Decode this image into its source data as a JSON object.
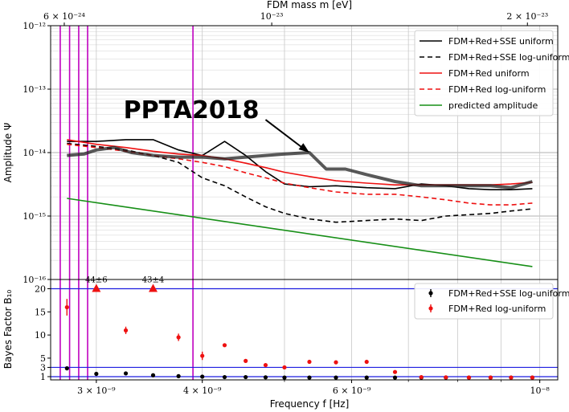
{
  "chart_data": [
    {
      "type": "line",
      "ylabel": "Amplitude Ψ",
      "top_xlabel": "FDM mass m [eV]",
      "yscale": "log",
      "xscale": "log",
      "xlim": [
        2.65e-09,
        1.05e-08
      ],
      "ylim": [
        1e-16,
        1e-12
      ],
      "grid": true,
      "legend_position": "top-right",
      "y_ticks": [
        {
          "v": 1e-16,
          "label": "10⁻¹⁶"
        },
        {
          "v": 1e-15,
          "label": "10⁻¹⁵"
        },
        {
          "v": 1e-14,
          "label": "10⁻¹⁴"
        },
        {
          "v": 1e-13,
          "label": "10⁻¹³"
        },
        {
          "v": 1e-12,
          "label": "10⁻¹²"
        }
      ],
      "top_ticks": [
        {
          "v": 2.75e-09,
          "label": "6 × 10⁻²⁴"
        },
        {
          "v": 4.83e-09,
          "label": "10⁻²³"
        },
        {
          "v": 9.67e-09,
          "label": "2 × 10⁻²³"
        }
      ],
      "vlines_x": [
        2.72e-09,
        2.79e-09,
        2.86e-09,
        2.93e-09,
        3.9e-09
      ],
      "vline_color": "#bf00bf",
      "annotation": {
        "text": "PPTA2018",
        "arrow_from": [
          4.75e-09,
          3.3e-14
        ],
        "arrow_to": [
          5.35e-09,
          1e-14
        ]
      },
      "series": [
        {
          "name": "FDM+Red+SSE uniform",
          "color": "#000000",
          "dash": "solid",
          "width": 1.6,
          "x": [
            2.77e-09,
            3e-09,
            3.25e-09,
            3.5e-09,
            3.75e-09,
            4e-09,
            4.25e-09,
            4.5e-09,
            4.75e-09,
            5e-09,
            5.35e-09,
            5.75e-09,
            6.25e-09,
            6.75e-09,
            7.25e-09,
            7.75e-09,
            8.25e-09,
            8.75e-09,
            9.25e-09,
            9.8e-09
          ],
          "y": [
            1.5e-14,
            1.5e-14,
            1.6e-14,
            1.6e-14,
            1.1e-14,
            9e-15,
            1.5e-14,
            9e-15,
            5e-15,
            3.2e-15,
            2.9e-15,
            3e-15,
            2.8e-15,
            2.7e-15,
            3.2e-15,
            3e-15,
            2.7e-15,
            2.6e-15,
            2.6e-15,
            2.7e-15
          ]
        },
        {
          "name": "FDM+Red+SSE log-uniform",
          "color": "#000000",
          "dash": "6,4",
          "width": 1.6,
          "x": [
            2.77e-09,
            3e-09,
            3.25e-09,
            3.5e-09,
            3.75e-09,
            4e-09,
            4.25e-09,
            4.5e-09,
            4.75e-09,
            5e-09,
            5.35e-09,
            5.75e-09,
            6.25e-09,
            6.75e-09,
            7.25e-09,
            7.75e-09,
            8.25e-09,
            8.75e-09,
            9.25e-09,
            9.8e-09
          ],
          "y": [
            1.4e-14,
            1.25e-14,
            1.1e-14,
            9e-15,
            7e-15,
            4e-15,
            3e-15,
            2e-15,
            1.4e-15,
            1.1e-15,
            9e-16,
            8e-16,
            8.5e-16,
            9e-16,
            8.5e-16,
            1e-15,
            1.05e-15,
            1.1e-15,
            1.2e-15,
            1.3e-15
          ]
        },
        {
          "name": "FDM+Red uniform",
          "color": "#ee1111",
          "dash": "solid",
          "width": 1.6,
          "x": [
            2.77e-09,
            3e-09,
            3.25e-09,
            3.5e-09,
            3.75e-09,
            4e-09,
            4.25e-09,
            4.5e-09,
            4.75e-09,
            5e-09,
            5.35e-09,
            5.75e-09,
            6.25e-09,
            6.75e-09,
            7.25e-09,
            7.75e-09,
            8.25e-09,
            8.75e-09,
            9.25e-09,
            9.8e-09
          ],
          "y": [
            1.6e-14,
            1.35e-14,
            1.2e-14,
            1.05e-14,
            9.5e-15,
            9e-15,
            8e-15,
            6.8e-15,
            5.8e-15,
            4.9e-15,
            4.2e-15,
            3.6e-15,
            3.3e-15,
            3.1e-15,
            3.1e-15,
            3.1e-15,
            3.1e-15,
            3.1e-15,
            3.2e-15,
            3.4e-15
          ]
        },
        {
          "name": "FDM+Red log-uniform",
          "color": "#ee1111",
          "dash": "6,4",
          "width": 1.6,
          "x": [
            2.77e-09,
            3e-09,
            3.25e-09,
            3.5e-09,
            3.75e-09,
            4e-09,
            4.25e-09,
            4.5e-09,
            4.75e-09,
            5e-09,
            5.35e-09,
            5.75e-09,
            6.25e-09,
            6.75e-09,
            7.25e-09,
            7.75e-09,
            8.25e-09,
            8.75e-09,
            9.25e-09,
            9.8e-09
          ],
          "y": [
            1.35e-14,
            1.2e-14,
            1.05e-14,
            9e-15,
            8e-15,
            7e-15,
            6e-15,
            4.8e-15,
            4e-15,
            3.3e-15,
            2.8e-15,
            2.4e-15,
            2.2e-15,
            2.2e-15,
            2e-15,
            1.8e-15,
            1.6e-15,
            1.5e-15,
            1.5e-15,
            1.6e-15
          ]
        },
        {
          "name": "predicted amplitude",
          "color": "#178f17",
          "dash": "solid",
          "width": 1.6,
          "x": [
            2.77e-09,
            9.8e-09
          ],
          "y": [
            1.9e-15,
            1.6e-16
          ]
        },
        {
          "name": "",
          "color": "#222222",
          "dash": "solid",
          "width": 4,
          "opacity": 0.75,
          "x": [
            2.77e-09,
            2.9e-09,
            3e-09,
            3.15e-09,
            3.3e-09,
            3.5e-09,
            3.75e-09,
            4e-09,
            4.25e-09,
            4.5e-09,
            4.75e-09,
            5e-09,
            5.35e-09,
            5.6e-09,
            5.9e-09,
            6.25e-09,
            6.75e-09,
            7.25e-09,
            7.75e-09,
            8.25e-09,
            8.75e-09,
            9.25e-09,
            9.8e-09
          ],
          "y": [
            9e-15,
            9.5e-15,
            1.1e-14,
            1.2e-14,
            1e-14,
            9e-15,
            8.5e-15,
            8.5e-15,
            8e-15,
            8.5e-15,
            9e-15,
            9.5e-15,
            1e-14,
            5.5e-15,
            5.5e-15,
            4.5e-15,
            3.5e-15,
            3e-15,
            3e-15,
            3e-15,
            3e-15,
            2.8e-15,
            3.5e-15
          ]
        }
      ]
    },
    {
      "type": "scatter",
      "xlabel": "Frequency f [Hz]",
      "ylabel": "Bayes Factor B₁₀",
      "xscale": "log",
      "xlim": [
        2.65e-09,
        1.05e-08
      ],
      "ylim": [
        0.3,
        22
      ],
      "legend_position": "top-right",
      "x_ticks": [
        {
          "v": 3e-09,
          "label": "3 × 10⁻⁹"
        },
        {
          "v": 4e-09,
          "label": "4 × 10⁻⁹"
        },
        {
          "v": 6e-09,
          "label": "6 × 10⁻⁹"
        },
        {
          "v": 1e-08,
          "label": "10⁻⁸"
        }
      ],
      "y_ticks": [
        1,
        3,
        5,
        10,
        15,
        20
      ],
      "hlines": [
        1,
        3,
        20
      ],
      "hline_color": "#1e1ee0",
      "vlines_x": [
        2.72e-09,
        2.79e-09,
        2.86e-09,
        2.93e-09,
        3.9e-09
      ],
      "vline_color": "#bf00bf",
      "series": [
        {
          "name": "FDM+Red+SSE log-uniform",
          "color": "#000000",
          "x": [
            2.77e-09,
            3e-09,
            3.25e-09,
            3.5e-09,
            3.75e-09,
            4e-09,
            4.25e-09,
            4.5e-09,
            4.75e-09,
            5e-09,
            5.35e-09,
            5.75e-09,
            6.25e-09,
            6.75e-09,
            7.25e-09,
            7.75e-09,
            8.25e-09,
            8.75e-09,
            9.25e-09,
            9.8e-09
          ],
          "y": [
            2.8,
            1.6,
            1.7,
            1.3,
            1.1,
            1.0,
            0.9,
            0.9,
            0.85,
            0.8,
            0.8,
            0.8,
            0.8,
            0.8,
            0.8,
            0.8,
            0.8,
            0.8,
            0.8,
            0.8
          ],
          "err": [
            0.3,
            0.1,
            0.15,
            0.1,
            0.1,
            0.1,
            0.1,
            0.1,
            0.1,
            0.1,
            0.1,
            0.1,
            0.1,
            0.1,
            0.1,
            0.1,
            0.1,
            0.1,
            0.1,
            0.1
          ]
        },
        {
          "name": "FDM+Red log-uniform",
          "color": "#ee1111",
          "x": [
            2.77e-09,
            3.25e-09,
            3.75e-09,
            4e-09,
            4.25e-09,
            4.5e-09,
            4.75e-09,
            5e-09,
            5.35e-09,
            5.75e-09,
            6.25e-09,
            6.75e-09,
            7.25e-09,
            7.75e-09,
            8.25e-09,
            8.75e-09,
            9.25e-09,
            9.8e-09
          ],
          "y": [
            16,
            11,
            9.5,
            5.5,
            7.8,
            4.4,
            3.5,
            3.0,
            4.2,
            4.1,
            4.2,
            2.0,
            0.9,
            0.85,
            0.8,
            0.8,
            0.8,
            0.8
          ],
          "err": [
            1.8,
            0.8,
            0.8,
            0.9,
            0.2,
            0.2,
            0.2,
            0.2,
            0.2,
            0.2,
            0.2,
            0.2,
            0.1,
            0.1,
            0.1,
            0.1,
            0.1,
            0.1
          ]
        }
      ],
      "capped_points": [
        {
          "x": 3e-09,
          "y": 20,
          "label": "44±6"
        },
        {
          "x": 3.5e-09,
          "y": 20,
          "label": "43±4"
        }
      ]
    }
  ]
}
